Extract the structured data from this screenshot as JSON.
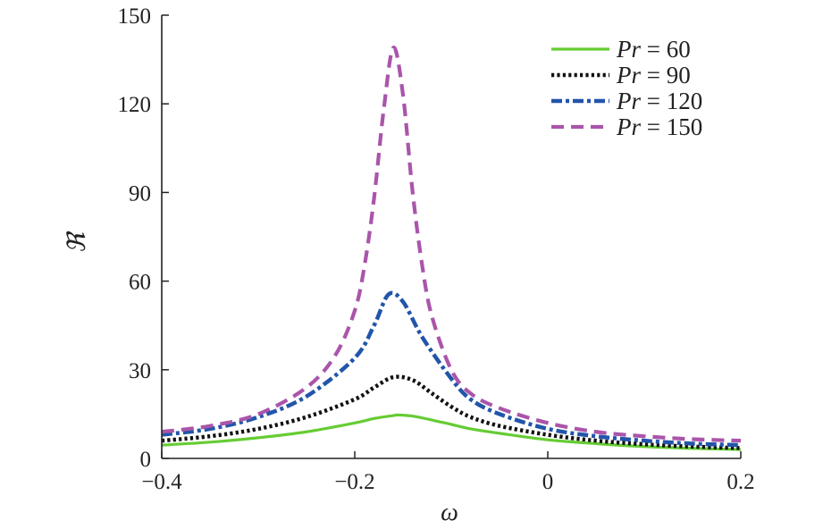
{
  "chart_data": {
    "type": "line",
    "xlabel": "ω",
    "ylabel": "ℜ",
    "xlim": [
      -0.4,
      0.2
    ],
    "ylim": [
      0,
      150
    ],
    "x_ticks": [
      -0.4,
      -0.2,
      0,
      0.2
    ],
    "x_tick_labels": [
      "−0.4",
      "−0.2",
      "0",
      "0.2"
    ],
    "y_ticks": [
      0,
      30,
      60,
      90,
      120,
      150
    ],
    "y_tick_labels": [
      "0",
      "30",
      "60",
      "90",
      "120",
      "150"
    ],
    "grid": false,
    "legend_position": "top-right",
    "series": [
      {
        "name": "Pr = 60",
        "legend_label": {
          "italic": "Pr",
          "rest": " = 60"
        },
        "color": "#66cc33",
        "style": "solid",
        "x": [
          -0.4,
          -0.35,
          -0.3,
          -0.25,
          -0.2,
          -0.18,
          -0.16,
          -0.155,
          -0.14,
          -0.12,
          -0.1,
          -0.08,
          -0.05,
          0,
          0.05,
          0.1,
          0.15,
          0.2
        ],
        "values": [
          4.5,
          5.5,
          7,
          9,
          12,
          13.5,
          14.5,
          14.7,
          14.3,
          13,
          11.5,
          10,
          8.5,
          6.3,
          5,
          4,
          3.4,
          3
        ]
      },
      {
        "name": "Pr = 90",
        "legend_label": {
          "italic": "Pr",
          "rest": " = 90"
        },
        "color": "#111111",
        "style": "dotted",
        "x": [
          -0.4,
          -0.35,
          -0.3,
          -0.25,
          -0.2,
          -0.18,
          -0.16,
          -0.14,
          -0.12,
          -0.1,
          -0.08,
          -0.05,
          0,
          0.05,
          0.1,
          0.15,
          0.2
        ],
        "values": [
          6,
          7.5,
          10,
          14,
          20,
          24,
          27.5,
          26.5,
          22,
          17.5,
          14,
          11,
          8,
          6,
          4.8,
          4,
          3.5
        ]
      },
      {
        "name": "Pr = 120",
        "legend_label": {
          "italic": "Pr",
          "rest": " = 120"
        },
        "color": "#2255aa",
        "style": "dashdot",
        "x": [
          -0.4,
          -0.35,
          -0.3,
          -0.25,
          -0.2,
          -0.18,
          -0.165,
          -0.15,
          -0.13,
          -0.1,
          -0.08,
          -0.05,
          0,
          0.05,
          0.1,
          0.15,
          0.2
        ],
        "values": [
          8,
          10,
          14,
          21,
          34,
          45,
          55.5,
          53,
          41,
          27,
          20,
          15,
          10,
          7.5,
          6,
          5,
          4.5
        ]
      },
      {
        "name": "Pr = 150",
        "legend_label": {
          "italic": "Pr",
          "rest": " = 150"
        },
        "color": "#aa55aa",
        "style": "dashed",
        "x": [
          -0.4,
          -0.35,
          -0.3,
          -0.25,
          -0.22,
          -0.2,
          -0.19,
          -0.18,
          -0.17,
          -0.16,
          -0.15,
          -0.14,
          -0.13,
          -0.12,
          -0.1,
          -0.08,
          -0.05,
          0,
          0.05,
          0.1,
          0.15,
          0.2
        ],
        "values": [
          9,
          11,
          15,
          24,
          35,
          50,
          65,
          88,
          118,
          139,
          123,
          90,
          65,
          48,
          30,
          22,
          17,
          12,
          9,
          7.5,
          6.5,
          6
        ]
      }
    ]
  }
}
